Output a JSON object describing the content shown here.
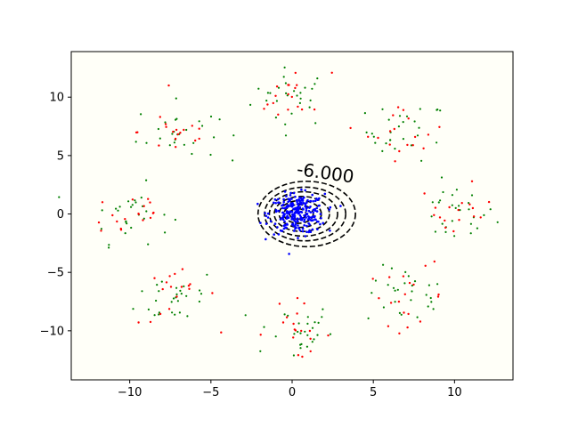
{
  "chart_data": {
    "type": "scatter",
    "title": "",
    "xlabel": "",
    "ylabel": "",
    "xlim": [
      -13.6,
      13.6
    ],
    "ylim": [
      -14.2,
      13.9
    ],
    "x_ticks": [
      -10,
      -5,
      0,
      5,
      10
    ],
    "y_ticks": [
      -10,
      -5,
      0,
      5,
      10
    ],
    "x_tick_labels": [
      "−10",
      "−5",
      "0",
      "5",
      "10"
    ],
    "y_tick_labels": [
      "−10",
      "−5",
      "0",
      "5",
      "10"
    ],
    "grid": false,
    "legend": "none",
    "background_color": "#fffff8",
    "contour": {
      "color": "#000000",
      "linestyle": "dashed",
      "label": "-6.000",
      "label_position": [
        2.0,
        3.0
      ],
      "levels": [
        {
          "center": [
            0.9,
            0.0
          ],
          "rx": 3.0,
          "ry": 2.8
        },
        {
          "center": [
            0.8,
            0.0
          ],
          "rx": 2.5,
          "ry": 2.3
        },
        {
          "center": [
            0.7,
            0.0
          ],
          "rx": 2.1,
          "ry": 1.9
        },
        {
          "center": [
            0.6,
            0.0
          ],
          "rx": 1.7,
          "ry": 1.5
        },
        {
          "center": [
            0.5,
            0.0
          ],
          "rx": 1.3,
          "ry": 1.15
        },
        {
          "center": [
            0.4,
            0.0
          ],
          "rx": 0.9,
          "ry": 0.8
        },
        {
          "center": [
            0.35,
            0.0
          ],
          "rx": 0.5,
          "ry": 0.45
        }
      ]
    },
    "series": [
      {
        "color": "#0000ff",
        "marker_size": 1.3,
        "cluster_centers": [
          [
            0.3,
            0.0
          ]
        ],
        "points_per_cluster": 260,
        "spread": 0.85
      },
      {
        "color": "#008000",
        "marker_size": 1.1,
        "cluster_centers": [
          [
            0,
            10
          ],
          [
            7.07,
            7.07
          ],
          [
            10,
            0
          ],
          [
            7.07,
            -7.07
          ],
          [
            0,
            -10
          ],
          [
            -7.07,
            -7.07
          ],
          [
            -10,
            0
          ],
          [
            -7.07,
            7.07
          ]
        ],
        "points_per_cluster": 28,
        "spread": 1.25
      },
      {
        "color": "#ff0000",
        "marker_size": 1.2,
        "cluster_centers": [
          [
            0,
            10
          ],
          [
            7.07,
            7.07
          ],
          [
            10,
            0
          ],
          [
            7.07,
            -7.07
          ],
          [
            0,
            -10
          ],
          [
            -7.07,
            -7.07
          ],
          [
            -10,
            0
          ],
          [
            -7.07,
            7.07
          ]
        ],
        "points_per_cluster": 18,
        "spread": 1.2
      }
    ]
  }
}
